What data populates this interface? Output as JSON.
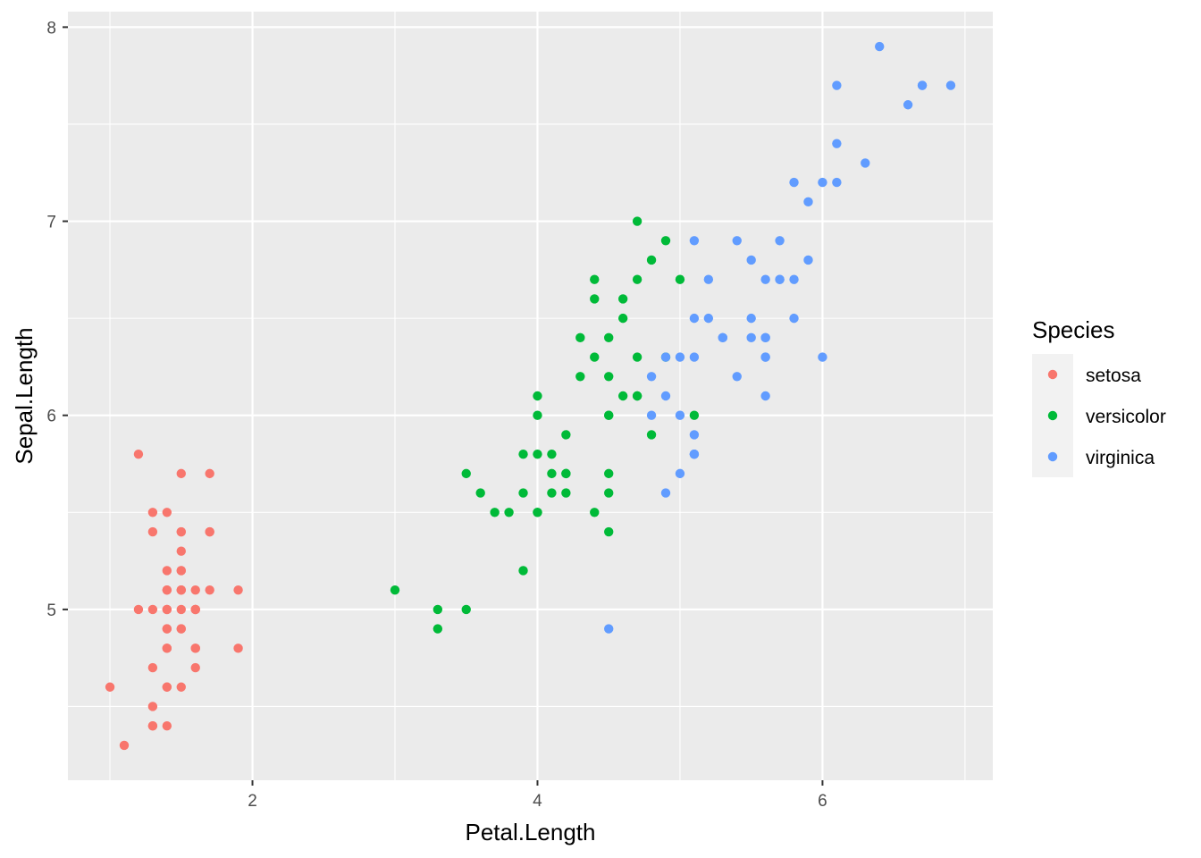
{
  "chart_data": {
    "type": "scatter",
    "title": "",
    "xlabel": "Petal.Length",
    "ylabel": "Sepal.Length",
    "xlim": [
      0.705,
      7.195
    ],
    "ylim": [
      4.12,
      8.08
    ],
    "x_ticks": [
      2,
      4,
      6
    ],
    "y_ticks": [
      5,
      6,
      7,
      8
    ],
    "x_tick_labels": [
      "2",
      "4",
      "6"
    ],
    "y_tick_labels": [
      "5",
      "6",
      "7",
      "8"
    ],
    "grid": true,
    "legend": {
      "title": "Species",
      "placement": "right",
      "entries": [
        "setosa",
        "versicolor",
        "virginica"
      ]
    },
    "series": [
      {
        "name": "setosa",
        "color": "#F8766D",
        "points": [
          [
            1.4,
            5.1
          ],
          [
            1.4,
            4.9
          ],
          [
            1.3,
            4.7
          ],
          [
            1.5,
            4.6
          ],
          [
            1.4,
            5.0
          ],
          [
            1.7,
            5.4
          ],
          [
            1.4,
            4.6
          ],
          [
            1.5,
            5.0
          ],
          [
            1.4,
            4.4
          ],
          [
            1.5,
            4.9
          ],
          [
            1.5,
            5.4
          ],
          [
            1.6,
            4.8
          ],
          [
            1.4,
            4.8
          ],
          [
            1.1,
            4.3
          ],
          [
            1.2,
            5.8
          ],
          [
            1.5,
            5.7
          ],
          [
            1.3,
            5.4
          ],
          [
            1.4,
            5.1
          ],
          [
            1.7,
            5.7
          ],
          [
            1.5,
            5.1
          ],
          [
            1.7,
            5.4
          ],
          [
            1.5,
            5.1
          ],
          [
            1.0,
            4.6
          ],
          [
            1.7,
            5.1
          ],
          [
            1.9,
            4.8
          ],
          [
            1.6,
            5.0
          ],
          [
            1.6,
            5.0
          ],
          [
            1.5,
            5.2
          ],
          [
            1.4,
            5.2
          ],
          [
            1.6,
            4.7
          ],
          [
            1.6,
            4.8
          ],
          [
            1.5,
            5.4
          ],
          [
            1.5,
            5.2
          ],
          [
            1.4,
            5.5
          ],
          [
            1.5,
            4.9
          ],
          [
            1.2,
            5.0
          ],
          [
            1.3,
            5.5
          ],
          [
            1.4,
            4.9
          ],
          [
            1.3,
            4.4
          ],
          [
            1.5,
            5.1
          ],
          [
            1.3,
            5.0
          ],
          [
            1.3,
            4.5
          ],
          [
            1.3,
            4.4
          ],
          [
            1.6,
            5.0
          ],
          [
            1.9,
            5.1
          ],
          [
            1.4,
            4.8
          ],
          [
            1.6,
            5.1
          ],
          [
            1.4,
            4.6
          ],
          [
            1.5,
            5.3
          ],
          [
            1.4,
            5.0
          ]
        ]
      },
      {
        "name": "versicolor",
        "color": "#00BA38",
        "points": [
          [
            4.7,
            7.0
          ],
          [
            4.5,
            6.4
          ],
          [
            4.9,
            6.9
          ],
          [
            4.0,
            5.5
          ],
          [
            4.6,
            6.5
          ],
          [
            4.5,
            5.7
          ],
          [
            4.7,
            6.3
          ],
          [
            3.3,
            4.9
          ],
          [
            4.6,
            6.6
          ],
          [
            3.9,
            5.2
          ],
          [
            3.5,
            5.0
          ],
          [
            4.2,
            5.9
          ],
          [
            4.0,
            6.0
          ],
          [
            4.7,
            6.1
          ],
          [
            3.6,
            5.6
          ],
          [
            4.4,
            6.7
          ],
          [
            4.5,
            5.6
          ],
          [
            4.1,
            5.8
          ],
          [
            4.5,
            6.2
          ],
          [
            3.9,
            5.6
          ],
          [
            4.8,
            5.9
          ],
          [
            4.0,
            6.1
          ],
          [
            4.9,
            6.3
          ],
          [
            4.7,
            6.1
          ],
          [
            4.3,
            6.4
          ],
          [
            4.4,
            6.6
          ],
          [
            4.8,
            6.8
          ],
          [
            5.0,
            6.7
          ],
          [
            4.5,
            6.0
          ],
          [
            3.5,
            5.7
          ],
          [
            3.8,
            5.5
          ],
          [
            3.7,
            5.5
          ],
          [
            3.9,
            5.8
          ],
          [
            5.1,
            6.0
          ],
          [
            4.5,
            5.4
          ],
          [
            4.5,
            6.0
          ],
          [
            4.7,
            6.7
          ],
          [
            4.4,
            6.3
          ],
          [
            4.1,
            5.6
          ],
          [
            4.0,
            5.5
          ],
          [
            4.4,
            5.5
          ],
          [
            4.6,
            6.1
          ],
          [
            4.0,
            5.8
          ],
          [
            3.3,
            5.0
          ],
          [
            4.2,
            5.6
          ],
          [
            4.2,
            5.7
          ],
          [
            4.2,
            5.7
          ],
          [
            4.3,
            6.2
          ],
          [
            3.0,
            5.1
          ],
          [
            4.1,
            5.7
          ]
        ]
      },
      {
        "name": "virginica",
        "color": "#619CFF",
        "points": [
          [
            6.0,
            6.3
          ],
          [
            5.1,
            5.8
          ],
          [
            5.9,
            7.1
          ],
          [
            5.6,
            6.3
          ],
          [
            5.8,
            6.5
          ],
          [
            6.6,
            7.6
          ],
          [
            4.5,
            4.9
          ],
          [
            6.3,
            7.3
          ],
          [
            5.8,
            6.7
          ],
          [
            6.1,
            7.2
          ],
          [
            5.1,
            6.5
          ],
          [
            5.3,
            6.4
          ],
          [
            5.5,
            6.8
          ],
          [
            5.0,
            5.7
          ],
          [
            5.1,
            5.8
          ],
          [
            5.3,
            6.4
          ],
          [
            5.5,
            6.5
          ],
          [
            6.7,
            7.7
          ],
          [
            6.9,
            7.7
          ],
          [
            5.0,
            6.0
          ],
          [
            5.7,
            6.9
          ],
          [
            4.9,
            5.6
          ],
          [
            6.7,
            7.7
          ],
          [
            4.9,
            6.3
          ],
          [
            5.7,
            6.7
          ],
          [
            6.0,
            7.2
          ],
          [
            4.8,
            6.2
          ],
          [
            4.9,
            6.1
          ],
          [
            5.6,
            6.4
          ],
          [
            5.8,
            7.2
          ],
          [
            6.1,
            7.4
          ],
          [
            6.4,
            7.9
          ],
          [
            5.6,
            6.4
          ],
          [
            5.1,
            6.3
          ],
          [
            5.6,
            6.1
          ],
          [
            6.1,
            7.7
          ],
          [
            5.6,
            6.3
          ],
          [
            5.5,
            6.4
          ],
          [
            4.8,
            6.0
          ],
          [
            5.4,
            6.9
          ],
          [
            5.6,
            6.7
          ],
          [
            5.1,
            6.9
          ],
          [
            5.1,
            5.8
          ],
          [
            5.9,
            6.8
          ],
          [
            5.7,
            6.7
          ],
          [
            5.2,
            6.7
          ],
          [
            5.0,
            6.3
          ],
          [
            5.2,
            6.5
          ],
          [
            5.4,
            6.2
          ],
          [
            5.1,
            5.9
          ]
        ]
      }
    ]
  }
}
